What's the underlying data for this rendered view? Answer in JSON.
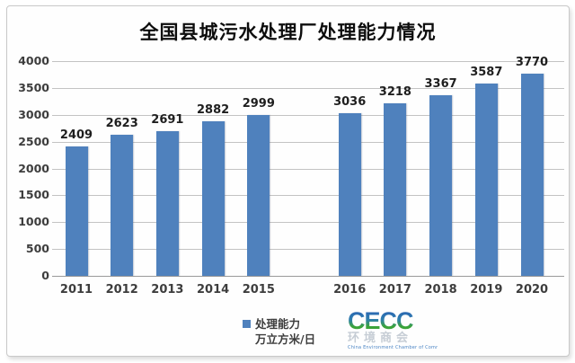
{
  "title": "全国县城污水处理厂处理能力情况",
  "chart_data": {
    "type": "bar",
    "title": "全国县城污水处理厂处理能力情况",
    "categories": [
      "2011",
      "2012",
      "2013",
      "2014",
      "2015",
      "2016",
      "2017",
      "2018",
      "2019",
      "2020"
    ],
    "values": [
      2409,
      2623,
      2691,
      2882,
      2999,
      3036,
      3218,
      3367,
      3587,
      3770
    ],
    "series_name": "处理能力",
    "unit": "万立方米/日",
    "xlabel": "",
    "ylabel": "",
    "ylim": [
      0,
      4000
    ],
    "yticks": [
      0,
      500,
      1000,
      1500,
      2000,
      2500,
      3000,
      3500,
      4000
    ],
    "grid": "horizontal",
    "data_labels": true,
    "legend_position": "bottom",
    "bar_color": "#4f81bd",
    "group_gap_after_index": 4
  },
  "legend": {
    "marker_color": "#4f81bd",
    "label_line1": "处理能力",
    "label_line2": "万立方米/日"
  },
  "logo": {
    "text": "CECC",
    "subtitle": "环境商会",
    "tagline": "China Environment Chamber of Commerce"
  },
  "colors": {
    "bar": "#4f81bd",
    "gridline": "#c3c3c3",
    "axis_line": "#9a9a9a",
    "tick_text": "#3d3d3d",
    "data_label_text": "#1f1f1f",
    "title_text": "#0d0d0d",
    "card_border": "#c9c9c9"
  }
}
